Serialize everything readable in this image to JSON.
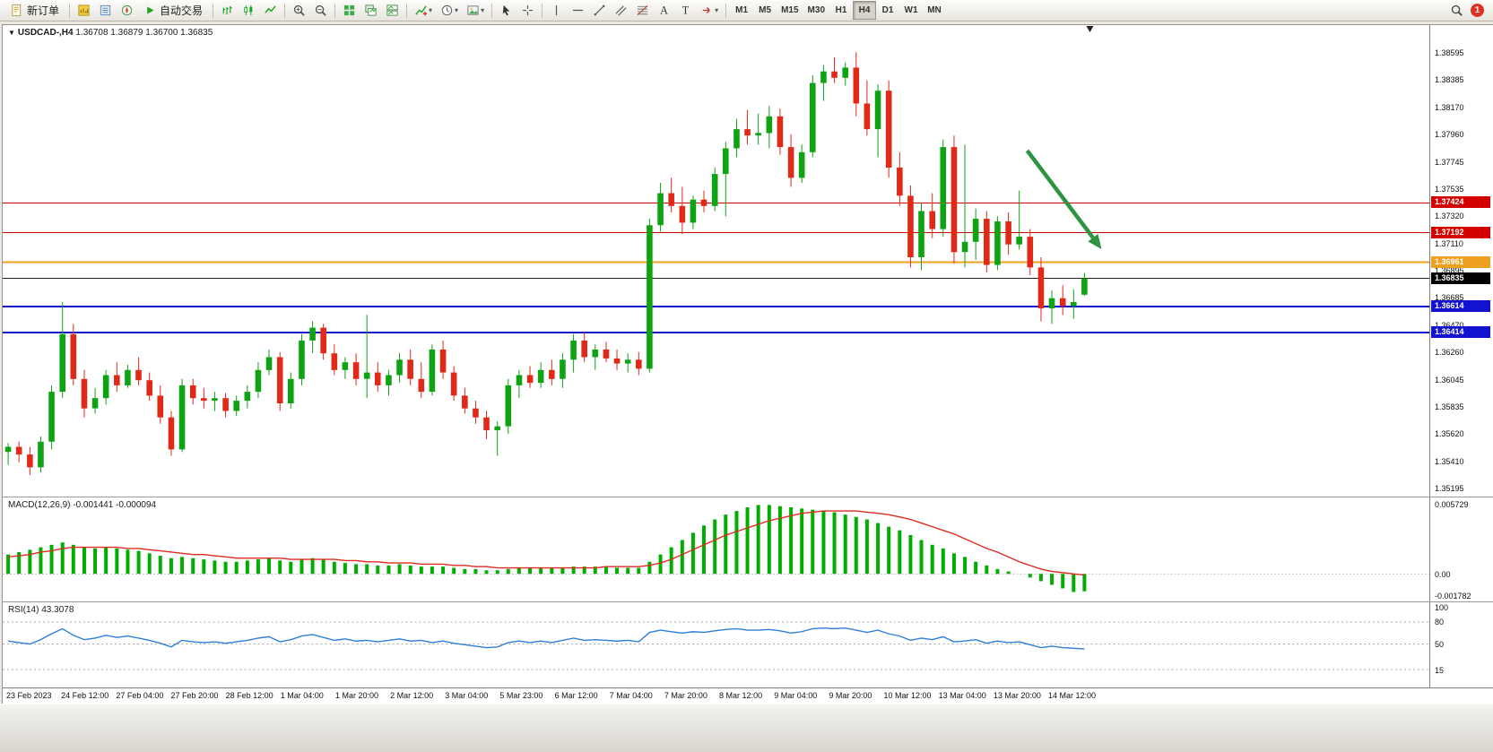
{
  "toolbar": {
    "new_order_label": "新订单",
    "auto_trading_label": "自动交易",
    "timeframes": [
      "M1",
      "M5",
      "M15",
      "M30",
      "H1",
      "H4",
      "D1",
      "W1",
      "MN"
    ],
    "active_timeframe": "H4",
    "notification_count": "1",
    "icons": {
      "new_order": "document",
      "market_watch": "chart-columns",
      "data_window": "list-panel",
      "navigator": "compass",
      "auto_trading": "green-play-triangle",
      "chart_bars": "ohlc-bars",
      "chart_candles": "candlesticks",
      "chart_line": "zigzag-line",
      "zoom_in": "magnifier-plus",
      "zoom_out": "magnifier-minus",
      "tile_windows": "green-grid",
      "cascade_windows": "stacked-windows",
      "arrange_windows": "split-windows",
      "indicators": "chart-plus",
      "periods": "clock",
      "templates": "picture",
      "cursor": "arrow-pointer",
      "crosshair": "crosshair",
      "vertical_line": "vertical-bar",
      "horizontal_line": "horizontal-bar",
      "trendline": "diagonal-line",
      "channel": "parallel-lines",
      "fibonacci": "fib-retracement",
      "text": "letter-A",
      "text_label": "letter-T",
      "arrows_tool": "red-arrow",
      "search": "magnifier",
      "notification": "red-circle-count",
      "shift_marker": "down-triangle",
      "title_marker": "down-triangle"
    }
  },
  "chart": {
    "title_symbol": "USDCAD-,H4",
    "title_ohlc": "1.36708 1.36879 1.36700 1.36835",
    "current_price": "1.36835",
    "price_axis_ticks": [
      "1.38595",
      "1.38385",
      "1.38170",
      "1.37960",
      "1.37745",
      "1.37535",
      "1.37320",
      "1.37110",
      "1.36895",
      "1.36685",
      "1.36470",
      "1.36260",
      "1.36045",
      "1.35835",
      "1.35620",
      "1.35410",
      "1.35195"
    ],
    "colors": {
      "up": "#0ea312",
      "down": "#e02a17",
      "bid_line": "#222222",
      "arrow": "#2e9440"
    }
  },
  "macd": {
    "label": "MACD(12,26,9)",
    "values_text": "-0.001441 -0.000094",
    "axis_labels": [
      "0.005729",
      "0.00",
      "-0.001782"
    ],
    "axis_values": [
      0.005729,
      0,
      -0.001782
    ]
  },
  "rsi": {
    "label": "RSI(14)",
    "value_text": "43.3078",
    "axis_labels": [
      "100",
      "80",
      "50",
      "15"
    ],
    "axis_values": [
      100,
      80,
      50,
      15
    ]
  },
  "chart_data": [
    {
      "type": "candlestick",
      "symbol": "USDCAD",
      "timeframe": "H4",
      "bid": 1.36835,
      "y_range": [
        1.35195,
        1.38595
      ],
      "levels": [
        {
          "price": 1.37424,
          "label": "1.37424",
          "color": "#d40000",
          "width": 1
        },
        {
          "price": 1.37192,
          "label": "1.37192",
          "color": "#d40000",
          "width": 1
        },
        {
          "price": 1.36961,
          "label": "1.36961",
          "color": "#efa021",
          "width": 2
        },
        {
          "price": 1.36614,
          "label": "1.36614",
          "color": "#1212cf",
          "width": 2
        },
        {
          "price": 1.36414,
          "label": "1.36414",
          "color": "#1212cf",
          "width": 2
        }
      ],
      "x_labels": [
        "23 Feb 2023",
        "24 Feb 12:00",
        "27 Feb 04:00",
        "27 Feb 20:00",
        "28 Feb 12:00",
        "1 Mar 04:00",
        "1 Mar 20:00",
        "2 Mar 12:00",
        "3 Mar 04:00",
        "5 Mar 23:00",
        "6 Mar 12:00",
        "7 Mar 04:00",
        "7 Mar 20:00",
        "8 Mar 12:00",
        "9 Mar 04:00",
        "9 Mar 20:00",
        "10 Mar 12:00",
        "13 Mar 04:00",
        "13 Mar 20:00",
        "14 Mar 12:00"
      ],
      "annotations": [
        {
          "type": "arrow",
          "direction": "down-right",
          "color": "#2e9440"
        }
      ],
      "ohlc": [
        [
          1.3548,
          1.3555,
          1.3538,
          1.3552
        ],
        [
          1.3552,
          1.3556,
          1.354,
          1.3546
        ],
        [
          1.3546,
          1.3552,
          1.353,
          1.3536
        ],
        [
          1.3536,
          1.356,
          1.3532,
          1.3556
        ],
        [
          1.3556,
          1.36,
          1.355,
          1.3595
        ],
        [
          1.3595,
          1.3665,
          1.359,
          1.364
        ],
        [
          1.364,
          1.3648,
          1.36,
          1.3605
        ],
        [
          1.3605,
          1.3612,
          1.3575,
          1.3582
        ],
        [
          1.3582,
          1.3598,
          1.3578,
          1.359
        ],
        [
          1.359,
          1.3612,
          1.3585,
          1.3608
        ],
        [
          1.3608,
          1.3618,
          1.3595,
          1.36
        ],
        [
          1.36,
          1.3616,
          1.3598,
          1.3612
        ],
        [
          1.3612,
          1.3622,
          1.36,
          1.3604
        ],
        [
          1.3604,
          1.361,
          1.3588,
          1.3592
        ],
        [
          1.3592,
          1.36,
          1.357,
          1.3575
        ],
        [
          1.3575,
          1.358,
          1.3545,
          1.355
        ],
        [
          1.355,
          1.3605,
          1.3548,
          1.36
        ],
        [
          1.36,
          1.3605,
          1.3585,
          1.359
        ],
        [
          1.359,
          1.3598,
          1.3582,
          1.3588
        ],
        [
          1.3588,
          1.3595,
          1.358,
          1.359
        ],
        [
          1.359,
          1.3594,
          1.3575,
          1.358
        ],
        [
          1.358,
          1.3592,
          1.3576,
          1.3588
        ],
        [
          1.3588,
          1.36,
          1.3582,
          1.3595
        ],
        [
          1.3595,
          1.3618,
          1.359,
          1.3612
        ],
        [
          1.3612,
          1.3628,
          1.3608,
          1.3622
        ],
        [
          1.3622,
          1.3626,
          1.358,
          1.3586
        ],
        [
          1.3586,
          1.361,
          1.3582,
          1.3605
        ],
        [
          1.3605,
          1.364,
          1.36,
          1.3635
        ],
        [
          1.3635,
          1.365,
          1.3625,
          1.3645
        ],
        [
          1.3645,
          1.3648,
          1.362,
          1.3625
        ],
        [
          1.3625,
          1.3632,
          1.3608,
          1.3612
        ],
        [
          1.3612,
          1.3622,
          1.3605,
          1.3618
        ],
        [
          1.3618,
          1.3625,
          1.36,
          1.3605
        ],
        [
          1.3605,
          1.3655,
          1.359,
          1.361
        ],
        [
          1.361,
          1.3618,
          1.3595,
          1.36
        ],
        [
          1.36,
          1.3612,
          1.3592,
          1.3608
        ],
        [
          1.3608,
          1.3625,
          1.3602,
          1.362
        ],
        [
          1.362,
          1.3628,
          1.36,
          1.3605
        ],
        [
          1.3605,
          1.3618,
          1.359,
          1.3595
        ],
        [
          1.3595,
          1.3632,
          1.3592,
          1.3628
        ],
        [
          1.3628,
          1.3635,
          1.3605,
          1.361
        ],
        [
          1.361,
          1.3615,
          1.3588,
          1.3592
        ],
        [
          1.3592,
          1.3598,
          1.3578,
          1.3582
        ],
        [
          1.3582,
          1.3588,
          1.357,
          1.3575
        ],
        [
          1.3575,
          1.358,
          1.3558,
          1.3565
        ],
        [
          1.3565,
          1.3572,
          1.3545,
          1.3568
        ],
        [
          1.3568,
          1.3605,
          1.3562,
          1.36
        ],
        [
          1.36,
          1.3612,
          1.359,
          1.3608
        ],
        [
          1.3608,
          1.3615,
          1.3598,
          1.3602
        ],
        [
          1.3602,
          1.3618,
          1.3598,
          1.3612
        ],
        [
          1.3612,
          1.362,
          1.36,
          1.3605
        ],
        [
          1.3605,
          1.3625,
          1.3598,
          1.362
        ],
        [
          1.362,
          1.364,
          1.361,
          1.3635
        ],
        [
          1.3635,
          1.3642,
          1.3618,
          1.3622
        ],
        [
          1.3622,
          1.3632,
          1.3612,
          1.3628
        ],
        [
          1.3628,
          1.3634,
          1.3618,
          1.3621
        ],
        [
          1.3621,
          1.3628,
          1.3612,
          1.3617
        ],
        [
          1.3617,
          1.3625,
          1.361,
          1.362
        ],
        [
          1.362,
          1.3626,
          1.3608,
          1.3613
        ],
        [
          1.3613,
          1.373,
          1.361,
          1.3725
        ],
        [
          1.3725,
          1.3758,
          1.372,
          1.375
        ],
        [
          1.375,
          1.3762,
          1.3735,
          1.374
        ],
        [
          1.374,
          1.3755,
          1.3718,
          1.3727
        ],
        [
          1.3727,
          1.3748,
          1.3722,
          1.3745
        ],
        [
          1.3745,
          1.3752,
          1.3735,
          1.374
        ],
        [
          1.374,
          1.377,
          1.3736,
          1.3765
        ],
        [
          1.3765,
          1.379,
          1.3732,
          1.3785
        ],
        [
          1.3785,
          1.3808,
          1.3778,
          1.38
        ],
        [
          1.38,
          1.3815,
          1.3788,
          1.3795
        ],
        [
          1.3795,
          1.3812,
          1.3788,
          1.3797
        ],
        [
          1.3797,
          1.3818,
          1.3785,
          1.381
        ],
        [
          1.381,
          1.3816,
          1.378,
          1.3786
        ],
        [
          1.3786,
          1.3796,
          1.3755,
          1.3762
        ],
        [
          1.3762,
          1.3788,
          1.3758,
          1.3782
        ],
        [
          1.3782,
          1.3842,
          1.3778,
          1.3836
        ],
        [
          1.3836,
          1.385,
          1.3822,
          1.3845
        ],
        [
          1.3845,
          1.3856,
          1.3836,
          1.384
        ],
        [
          1.384,
          1.3852,
          1.3834,
          1.3848
        ],
        [
          1.3848,
          1.386,
          1.381,
          1.382
        ],
        [
          1.382,
          1.3838,
          1.3795,
          1.38
        ],
        [
          1.38,
          1.3835,
          1.3778,
          1.383
        ],
        [
          1.383,
          1.3838,
          1.3762,
          1.377
        ],
        [
          1.377,
          1.3782,
          1.374,
          1.3748
        ],
        [
          1.3748,
          1.3756,
          1.3692,
          1.37
        ],
        [
          1.37,
          1.3742,
          1.369,
          1.3736
        ],
        [
          1.3736,
          1.375,
          1.3715,
          1.3722
        ],
        [
          1.3722,
          1.3792,
          1.3716,
          1.3786
        ],
        [
          1.3786,
          1.3795,
          1.3695,
          1.3704
        ],
        [
          1.3704,
          1.3788,
          1.3692,
          1.3712
        ],
        [
          1.3712,
          1.3738,
          1.3698,
          1.373
        ],
        [
          1.373,
          1.3736,
          1.3688,
          1.3694
        ],
        [
          1.3694,
          1.3732,
          1.369,
          1.3728
        ],
        [
          1.3728,
          1.3735,
          1.3702,
          1.371
        ],
        [
          1.371,
          1.3752,
          1.3706,
          1.3716
        ],
        [
          1.3716,
          1.3722,
          1.3686,
          1.3692
        ],
        [
          1.3692,
          1.37,
          1.365,
          1.366
        ],
        [
          1.366,
          1.3674,
          1.3648,
          1.3668
        ],
        [
          1.3668,
          1.3678,
          1.3655,
          1.3662
        ],
        [
          1.3662,
          1.3675,
          1.3652,
          1.3665
        ],
        [
          1.36708,
          1.36879,
          1.367,
          1.36835
        ]
      ]
    },
    {
      "type": "bar",
      "name": "MACD(12,26,9)",
      "current_values": [
        -0.001441,
        -9.4e-05
      ],
      "y_range": [
        -0.001782,
        0.005729
      ],
      "histogram": [
        0.0016,
        0.0018,
        0.002,
        0.0022,
        0.0024,
        0.0026,
        0.0024,
        0.0022,
        0.0021,
        0.0022,
        0.0021,
        0.002,
        0.0019,
        0.0017,
        0.0015,
        0.0013,
        0.0014,
        0.0013,
        0.0012,
        0.0011,
        0.001,
        0.001,
        0.0011,
        0.0012,
        0.0013,
        0.0011,
        0.001,
        0.0012,
        0.0013,
        0.0012,
        0.001,
        0.0009,
        0.0008,
        0.0008,
        0.0007,
        0.0007,
        0.0008,
        0.0007,
        0.0006,
        0.0006,
        0.0006,
        0.0005,
        0.0004,
        0.0004,
        0.0003,
        0.0003,
        0.0004,
        0.0005,
        0.0005,
        0.0005,
        0.0005,
        0.0005,
        0.0006,
        0.0006,
        0.0006,
        0.0006,
        0.0005,
        0.0005,
        0.0005,
        0.001,
        0.0016,
        0.0022,
        0.0028,
        0.0034,
        0.004,
        0.0045,
        0.0049,
        0.0052,
        0.0055,
        0.0057,
        0.0057,
        0.0056,
        0.0055,
        0.0054,
        0.0053,
        0.0052,
        0.0051,
        0.0049,
        0.0047,
        0.0045,
        0.0042,
        0.0039,
        0.0036,
        0.0032,
        0.0028,
        0.0024,
        0.0021,
        0.0017,
        0.0014,
        0.001,
        0.0007,
        0.0004,
        0.0002,
        0.0,
        -0.0003,
        -0.0006,
        -0.0009,
        -0.0012,
        -0.0015,
        -0.001441
      ],
      "signal": [
        0.0014,
        0.0015,
        0.0016,
        0.0018,
        0.0019,
        0.0021,
        0.0022,
        0.0022,
        0.0022,
        0.0022,
        0.0022,
        0.0021,
        0.0021,
        0.002,
        0.0019,
        0.0018,
        0.0017,
        0.0016,
        0.0016,
        0.0015,
        0.0014,
        0.0013,
        0.0013,
        0.0013,
        0.0013,
        0.0013,
        0.0012,
        0.0012,
        0.0012,
        0.0012,
        0.0012,
        0.0011,
        0.0011,
        0.001,
        0.001,
        0.0009,
        0.0009,
        0.0009,
        0.0008,
        0.0008,
        0.0008,
        0.0007,
        0.0007,
        0.0006,
        0.0006,
        0.0005,
        0.0005,
        0.0005,
        0.0005,
        0.0005,
        0.0005,
        0.0005,
        0.0005,
        0.0005,
        0.0005,
        0.0006,
        0.0006,
        0.0006,
        0.0006,
        0.0007,
        0.0009,
        0.0012,
        0.0016,
        0.002,
        0.0024,
        0.0028,
        0.0032,
        0.0035,
        0.0038,
        0.0041,
        0.0044,
        0.0046,
        0.0048,
        0.005,
        0.0051,
        0.0052,
        0.0052,
        0.0052,
        0.0052,
        0.0051,
        0.005,
        0.0049,
        0.0047,
        0.0045,
        0.0042,
        0.0039,
        0.0036,
        0.0033,
        0.0029,
        0.0025,
        0.0021,
        0.0018,
        0.0014,
        0.001,
        0.0007,
        0.0004,
        0.0002,
        0.0001,
        0.0,
        -9.4e-05
      ]
    },
    {
      "type": "line",
      "name": "RSI(14)",
      "current_value": 43.3078,
      "y_range": [
        0,
        100
      ],
      "level_lines": [
        80,
        50,
        15
      ],
      "values": [
        54,
        52,
        50,
        56,
        64,
        71,
        62,
        56,
        58,
        62,
        59,
        61,
        58,
        55,
        51,
        46,
        55,
        53,
        52,
        53,
        51,
        53,
        55,
        58,
        60,
        53,
        56,
        61,
        63,
        59,
        55,
        57,
        54,
        55,
        53,
        55,
        57,
        54,
        55,
        52,
        54,
        51,
        49,
        47,
        45,
        46,
        52,
        54,
        52,
        54,
        52,
        55,
        58,
        55,
        56,
        55,
        54,
        55,
        53,
        66,
        69,
        67,
        65,
        67,
        66,
        68,
        70,
        71,
        69,
        69,
        70,
        68,
        65,
        67,
        71,
        72,
        71,
        72,
        69,
        66,
        69,
        64,
        61,
        55,
        58,
        56,
        60,
        53,
        54,
        56,
        51,
        54,
        52,
        53,
        49,
        45,
        47,
        45,
        44,
        43.3
      ]
    }
  ]
}
